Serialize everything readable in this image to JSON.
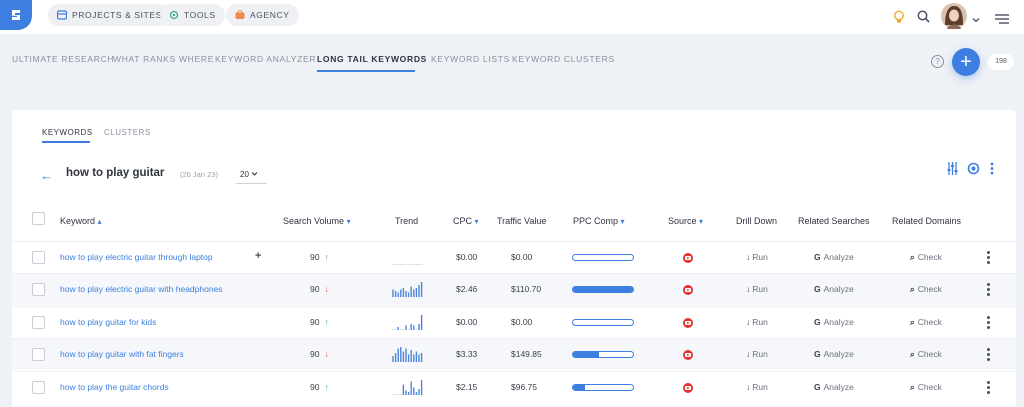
{
  "topbar": {
    "pills": [
      {
        "label": "PROJECTS & SITES",
        "icon": "grid-icon"
      },
      {
        "label": "TOOLS",
        "icon": "tools-icon"
      },
      {
        "label": "AGENCY",
        "icon": "briefcase-icon"
      }
    ],
    "right_icons": [
      "lightbulb-icon",
      "search-icon",
      "avatar",
      "chevron-down-icon",
      "menu-icon"
    ]
  },
  "nav": {
    "tabs": [
      "ULTIMATE RESEARCH",
      "WHAT RANKS WHERE",
      "KEYWORD ANALYZER",
      "LONG TAIL KEYWORDS",
      "KEYWORD LISTS",
      "KEYWORD CLUSTERS"
    ],
    "active_index": 3,
    "add_label": "+",
    "help_label": "?",
    "count": "198"
  },
  "card": {
    "tabs": [
      "KEYWORDS",
      "CLUSTERS"
    ],
    "active_tab": 0,
    "query": "how to play guitar",
    "query_date": "(20 Jan 23)",
    "per_page": "20",
    "toolbar_icons": [
      "sliders-icon",
      "settings-icon",
      "more-vertical-icon"
    ]
  },
  "table": {
    "columns": [
      "Keyword",
      "Search Volume",
      "Trend",
      "CPC",
      "Traffic Value",
      "PPC Comp",
      "Source",
      "Drill Down",
      "Related Searches",
      "Related Domains"
    ],
    "rows": [
      {
        "keyword": "how to play electric guitar through laptop",
        "extra": "+",
        "volume": "90",
        "dir": "up",
        "cpc": "$0.00",
        "traffic": "$0.00",
        "ppc": 0.0,
        "trend": [
          0,
          0,
          0,
          0,
          0,
          0,
          0,
          0,
          0,
          0,
          0,
          0
        ],
        "drill": "Run",
        "related": "Analyze",
        "domains": "Check"
      },
      {
        "keyword": "how to play electric guitar with headphones",
        "extra": "",
        "volume": "90",
        "dir": "down",
        "cpc": "$2.46",
        "traffic": "$110.70",
        "ppc": 1.0,
        "trend": [
          5,
          4,
          3,
          5,
          6,
          4,
          3,
          7,
          5,
          6,
          8,
          10
        ],
        "drill": "Run",
        "related": "Analyze",
        "domains": "Check"
      },
      {
        "keyword": "how to play guitar for kids",
        "extra": "",
        "volume": "90",
        "dir": "up",
        "cpc": "$0.00",
        "traffic": "$0.00",
        "ppc": 0.0,
        "trend": [
          0,
          0,
          2,
          0,
          0,
          3,
          0,
          4,
          3,
          0,
          4,
          10
        ],
        "drill": "Run",
        "related": "Analyze",
        "domains": "Check"
      },
      {
        "keyword": "how to play guitar with fat fingers",
        "extra": "",
        "volume": "90",
        "dir": "down",
        "cpc": "$3.33",
        "traffic": "$149.85",
        "ppc": 0.43,
        "trend": [
          4,
          6,
          9,
          10,
          7,
          9,
          5,
          8,
          5,
          7,
          5,
          6
        ],
        "drill": "Run",
        "related": "Analyze",
        "domains": "Check"
      },
      {
        "keyword": "how to play the guitar chords",
        "extra": "",
        "volume": "90",
        "dir": "up",
        "cpc": "$2.15",
        "traffic": "$96.75",
        "ppc": 0.2,
        "trend": [
          0,
          0,
          0,
          0,
          7,
          3,
          2,
          9,
          5,
          2,
          4,
          10
        ],
        "drill": "Run",
        "related": "Analyze",
        "domains": "Check"
      }
    ]
  },
  "colors": {
    "accent": "#3d7ee0",
    "up": "#46a35e",
    "down": "#e0453a",
    "source": "#e3342f"
  }
}
